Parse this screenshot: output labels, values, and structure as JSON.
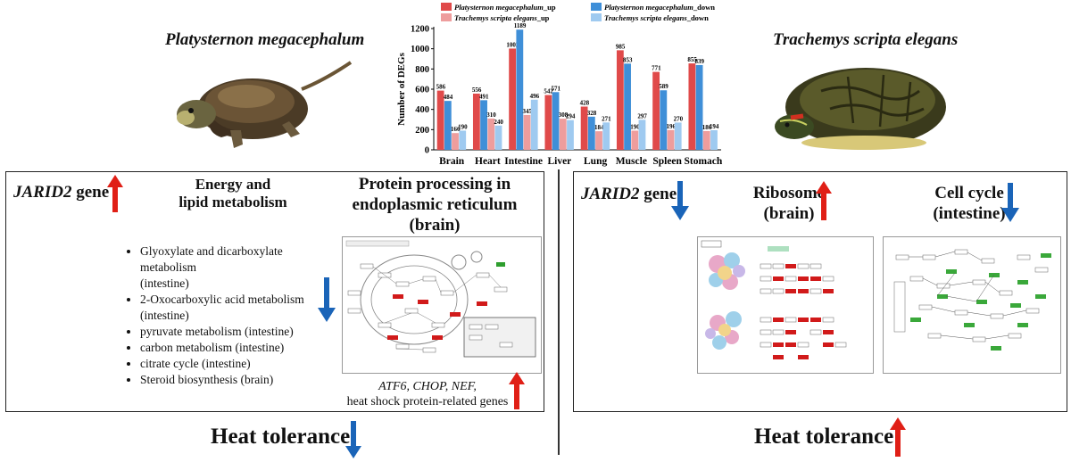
{
  "species": {
    "left": "Platysternon megacephalum",
    "right": "Trachemys scripta elegans"
  },
  "colors": {
    "pm_up": "#e04a4a",
    "pm_down": "#3f8fd8",
    "ts_up": "#ee9d9d",
    "ts_down": "#9fcaf0",
    "arrow_up": "#e01f16",
    "arrow_down": "#1a64b8"
  },
  "chart_data": {
    "type": "bar",
    "title": "",
    "xlabel": "",
    "ylabel": "Number of DEGs",
    "ylim": [
      0,
      1200
    ],
    "yticks": [
      "0",
      "200",
      "400",
      "600",
      "800",
      "1000",
      "1200"
    ],
    "categories": [
      "Brain",
      "Heart",
      "Intestine",
      "Liver",
      "Lung",
      "Muscle",
      "Spleen",
      "Stomach"
    ],
    "series": [
      {
        "name": "Platysternon megacephalum_up",
        "short": "Platysternon megacephalum",
        "suffix": "_up",
        "values": [
          586,
          556,
          1002,
          542,
          428,
          985,
          771,
          855
        ]
      },
      {
        "name": "Platysternon megacephalum_down",
        "short": "Platysternon megacephalum",
        "suffix": "_down",
        "values": [
          484,
          491,
          1189,
          571,
          328,
          853,
          589,
          839
        ]
      },
      {
        "name": "Trachemys scripta elegans_up",
        "short": "Trachemys scripta elegans",
        "suffix": "_up",
        "values": [
          166,
          310,
          345,
          308,
          184,
          190,
          196,
          186
        ]
      },
      {
        "name": "Trachemys scripta elegans_down",
        "short": "Trachemys scripta elegans",
        "suffix": "_down",
        "values": [
          190,
          240,
          496,
          294,
          271,
          297,
          270,
          194
        ]
      }
    ]
  },
  "left_panel": {
    "gene_italic": "JARID2",
    "gene_suffix": " gene",
    "energy_title_1": "Energy and",
    "energy_title_2": "lipid metabolism",
    "protein_title_1": "Protein processing in",
    "protein_title_2": "endoplasmic reticulum",
    "protein_title_3": "(brain)",
    "pathways": [
      "Glyoxylate and dicarboxylate metabolism",
      "(intestine)",
      "2-Oxocarboxylic acid metabolism",
      "(intestine)",
      "pyruvate metabolism (intestine)",
      "carbon metabolism (intestine)",
      "citrate cycle (intestine)",
      "Steroid biosynthesis (brain)"
    ],
    "genes_italic": "ATF6, CHOP, NEF,",
    "genes_line2": "heat shock protein-related genes"
  },
  "right_panel": {
    "gene_italic": "JARID2",
    "gene_suffix": " gene",
    "ribosome_1": "Ribosome",
    "ribosome_2": "(brain)",
    "cellcycle_1": "Cell cycle",
    "cellcycle_2": "(intestine)"
  },
  "heat_left": "Heat tolerance",
  "heat_right": "Heat tolerance"
}
